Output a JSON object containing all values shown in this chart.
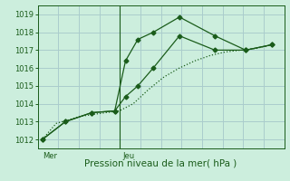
{
  "bg_color": "#cceedd",
  "grid_color": "#aacccc",
  "line_color": "#1a5c1a",
  "xlabel": "Pression niveau de la mer( hPa )",
  "ylim": [
    1011.5,
    1019.5
  ],
  "yticks": [
    1012,
    1013,
    1014,
    1015,
    1016,
    1017,
    1018,
    1019
  ],
  "xlim": [
    0,
    16
  ],
  "mer_x": 0.3,
  "jeu_x": 5.5,
  "vline_x": 5.3,
  "line1_x": [
    0.3,
    1.2,
    2.0,
    2.8,
    3.6,
    4.4,
    5.3,
    6.2,
    7.2,
    8.2,
    9.2,
    10.2,
    11.2,
    12.2,
    13.2,
    14.2,
    15.2
  ],
  "line1_y": [
    1012.0,
    1012.9,
    1013.1,
    1013.3,
    1013.4,
    1013.5,
    1013.6,
    1014.0,
    1014.8,
    1015.5,
    1016.0,
    1016.4,
    1016.7,
    1016.9,
    1017.0,
    1017.1,
    1017.3
  ],
  "line2_x": [
    0.3,
    1.8,
    3.5,
    5.0,
    5.7,
    6.5,
    7.5,
    9.2,
    11.5,
    13.5,
    15.2
  ],
  "line2_y": [
    1012.0,
    1013.0,
    1013.5,
    1013.6,
    1016.4,
    1017.6,
    1018.0,
    1018.85,
    1017.8,
    1017.0,
    1017.3
  ],
  "line3_x": [
    0.3,
    1.8,
    3.5,
    5.0,
    5.7,
    6.5,
    7.5,
    9.2,
    11.5,
    13.5,
    15.2
  ],
  "line3_y": [
    1012.0,
    1013.0,
    1013.5,
    1013.6,
    1014.4,
    1015.0,
    1016.0,
    1017.8,
    1017.0,
    1017.0,
    1017.3
  ],
  "xlabel_fontsize": 7.5,
  "tick_fontsize": 6,
  "tick_color": "#1a5c1a",
  "spine_color": "#1a5c1a"
}
